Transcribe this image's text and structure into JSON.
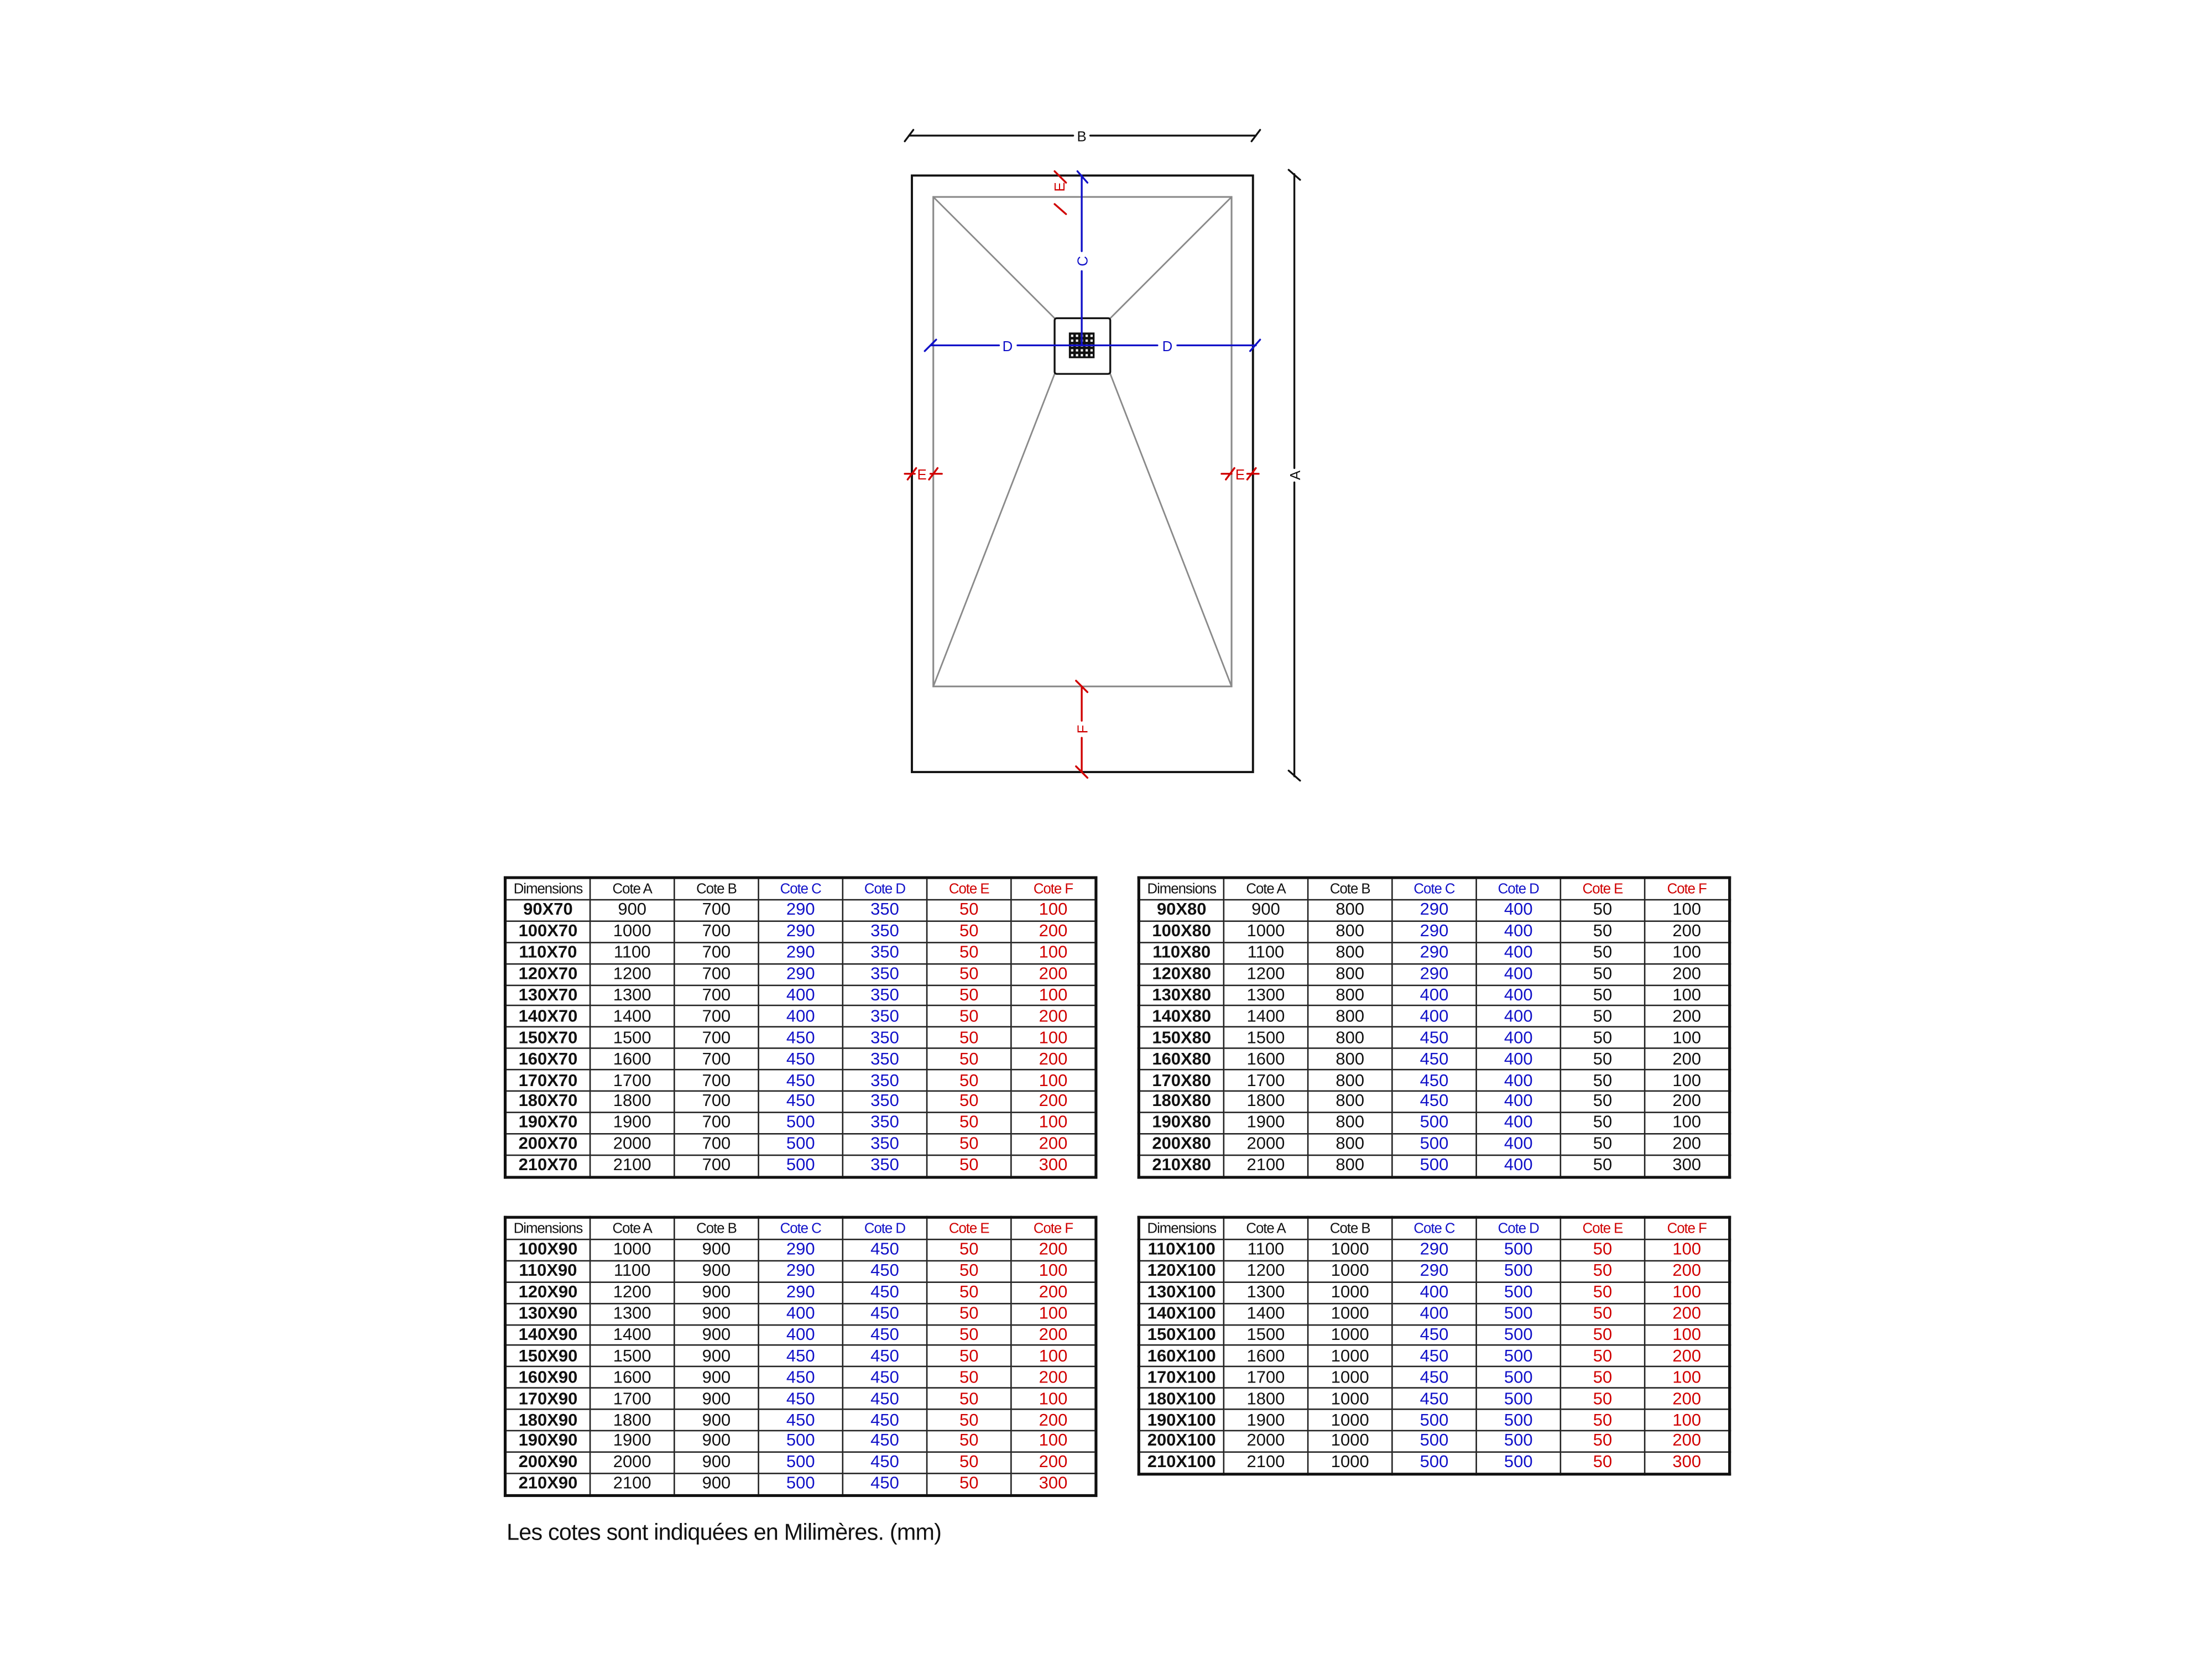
{
  "diagram": {
    "labels": {
      "a": "A",
      "b": "B",
      "c": "C",
      "d": "D",
      "e": "E",
      "f": "F"
    },
    "colors": {
      "outline": "#111111",
      "slope": "#8a8a8a",
      "blue_dims": "#1010c8",
      "red_dims": "#d00000"
    }
  },
  "columns": [
    "Dimensions",
    "Cote A",
    "Cote B",
    "Cote C",
    "Cote D",
    "Cote E",
    "Cote F"
  ],
  "tables": [
    {
      "ef_values_red": true,
      "rows": [
        [
          "90X70",
          "900",
          "700",
          "290",
          "350",
          "50",
          "100"
        ],
        [
          "100X70",
          "1000",
          "700",
          "290",
          "350",
          "50",
          "200"
        ],
        [
          "110X70",
          "1100",
          "700",
          "290",
          "350",
          "50",
          "100"
        ],
        [
          "120X70",
          "1200",
          "700",
          "290",
          "350",
          "50",
          "200"
        ],
        [
          "130X70",
          "1300",
          "700",
          "400",
          "350",
          "50",
          "100"
        ],
        [
          "140X70",
          "1400",
          "700",
          "400",
          "350",
          "50",
          "200"
        ],
        [
          "150X70",
          "1500",
          "700",
          "450",
          "350",
          "50",
          "100"
        ],
        [
          "160X70",
          "1600",
          "700",
          "450",
          "350",
          "50",
          "200"
        ],
        [
          "170X70",
          "1700",
          "700",
          "450",
          "350",
          "50",
          "100"
        ],
        [
          "180X70",
          "1800",
          "700",
          "450",
          "350",
          "50",
          "200"
        ],
        [
          "190X70",
          "1900",
          "700",
          "500",
          "350",
          "50",
          "100"
        ],
        [
          "200X70",
          "2000",
          "700",
          "500",
          "350",
          "50",
          "200"
        ],
        [
          "210X70",
          "2100",
          "700",
          "500",
          "350",
          "50",
          "300"
        ]
      ]
    },
    {
      "ef_values_red": false,
      "rows": [
        [
          "90X80",
          "900",
          "800",
          "290",
          "400",
          "50",
          "100"
        ],
        [
          "100X80",
          "1000",
          "800",
          "290",
          "400",
          "50",
          "200"
        ],
        [
          "110X80",
          "1100",
          "800",
          "290",
          "400",
          "50",
          "100"
        ],
        [
          "120X80",
          "1200",
          "800",
          "290",
          "400",
          "50",
          "200"
        ],
        [
          "130X80",
          "1300",
          "800",
          "400",
          "400",
          "50",
          "100"
        ],
        [
          "140X80",
          "1400",
          "800",
          "400",
          "400",
          "50",
          "200"
        ],
        [
          "150X80",
          "1500",
          "800",
          "450",
          "400",
          "50",
          "100"
        ],
        [
          "160X80",
          "1600",
          "800",
          "450",
          "400",
          "50",
          "200"
        ],
        [
          "170X80",
          "1700",
          "800",
          "450",
          "400",
          "50",
          "100"
        ],
        [
          "180X80",
          "1800",
          "800",
          "450",
          "400",
          "50",
          "200"
        ],
        [
          "190X80",
          "1900",
          "800",
          "500",
          "400",
          "50",
          "100"
        ],
        [
          "200X80",
          "2000",
          "800",
          "500",
          "400",
          "50",
          "200"
        ],
        [
          "210X80",
          "2100",
          "800",
          "500",
          "400",
          "50",
          "300"
        ]
      ]
    },
    {
      "ef_values_red": true,
      "rows": [
        [
          "100X90",
          "1000",
          "900",
          "290",
          "450",
          "50",
          "200"
        ],
        [
          "110X90",
          "1100",
          "900",
          "290",
          "450",
          "50",
          "100"
        ],
        [
          "120X90",
          "1200",
          "900",
          "290",
          "450",
          "50",
          "200"
        ],
        [
          "130X90",
          "1300",
          "900",
          "400",
          "450",
          "50",
          "100"
        ],
        [
          "140X90",
          "1400",
          "900",
          "400",
          "450",
          "50",
          "200"
        ],
        [
          "150X90",
          "1500",
          "900",
          "450",
          "450",
          "50",
          "100"
        ],
        [
          "160X90",
          "1600",
          "900",
          "450",
          "450",
          "50",
          "200"
        ],
        [
          "170X90",
          "1700",
          "900",
          "450",
          "450",
          "50",
          "100"
        ],
        [
          "180X90",
          "1800",
          "900",
          "450",
          "450",
          "50",
          "200"
        ],
        [
          "190X90",
          "1900",
          "900",
          "500",
          "450",
          "50",
          "100"
        ],
        [
          "200X90",
          "2000",
          "900",
          "500",
          "450",
          "50",
          "200"
        ],
        [
          "210X90",
          "2100",
          "900",
          "500",
          "450",
          "50",
          "300"
        ]
      ]
    },
    {
      "ef_values_red": true,
      "rows": [
        [
          "110X100",
          "1100",
          "1000",
          "290",
          "500",
          "50",
          "100"
        ],
        [
          "120X100",
          "1200",
          "1000",
          "290",
          "500",
          "50",
          "200"
        ],
        [
          "130X100",
          "1300",
          "1000",
          "400",
          "500",
          "50",
          "100"
        ],
        [
          "140X100",
          "1400",
          "1000",
          "400",
          "500",
          "50",
          "200"
        ],
        [
          "150X100",
          "1500",
          "1000",
          "450",
          "500",
          "50",
          "100"
        ],
        [
          "160X100",
          "1600",
          "1000",
          "450",
          "500",
          "50",
          "200"
        ],
        [
          "170X100",
          "1700",
          "1000",
          "450",
          "500",
          "50",
          "100"
        ],
        [
          "180X100",
          "1800",
          "1000",
          "450",
          "500",
          "50",
          "200"
        ],
        [
          "190X100",
          "1900",
          "1000",
          "500",
          "500",
          "50",
          "100"
        ],
        [
          "200X100",
          "2000",
          "1000",
          "500",
          "500",
          "50",
          "200"
        ],
        [
          "210X100",
          "2100",
          "1000",
          "500",
          "500",
          "50",
          "300"
        ]
      ]
    }
  ],
  "footnote": "Les cotes sont indiquées en Milimères. (mm)"
}
